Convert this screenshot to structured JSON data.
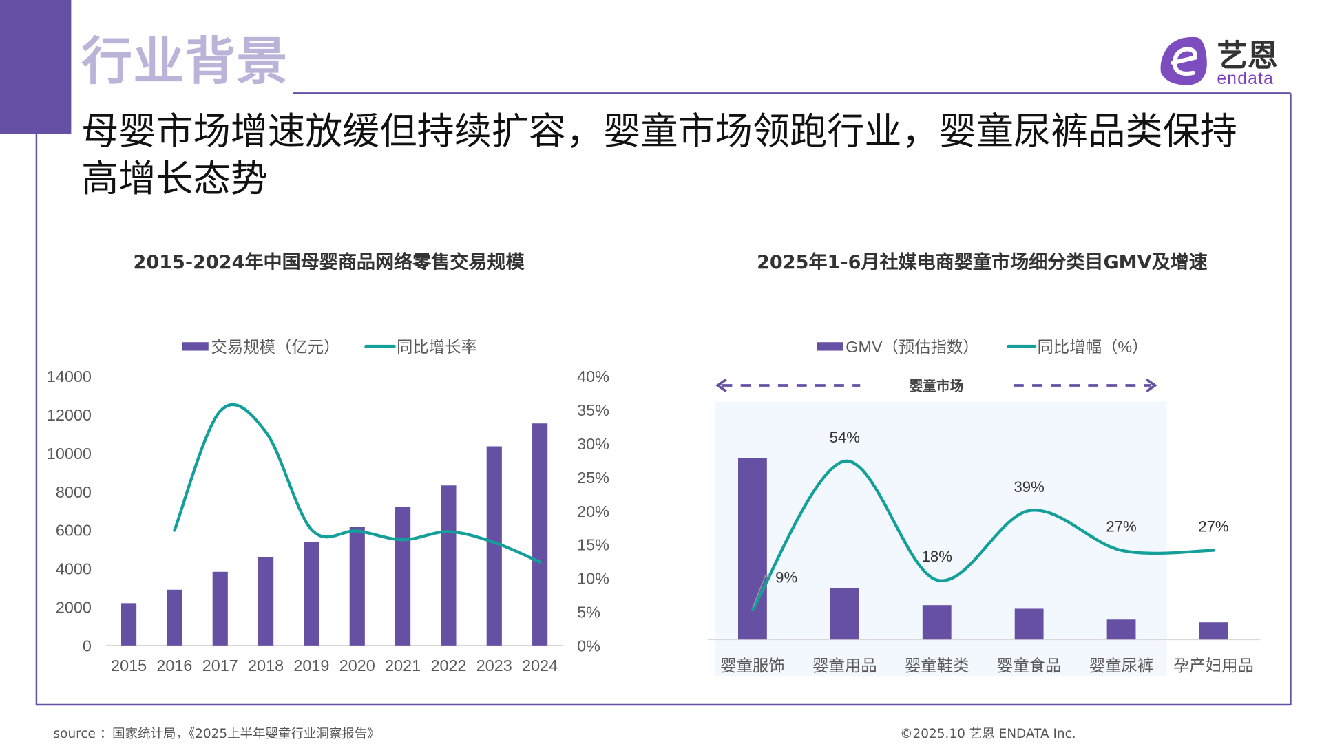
{
  "header": {
    "section_title": "行业背景",
    "headline": "母婴市场增速放缓但持续扩容，婴童市场领跑行业，婴童尿裤品类保持高增长态势",
    "logo_text": "艺恩",
    "logo_subtext": "endata"
  },
  "colors": {
    "brand_purple": "#6650a4",
    "section_title": "#bcb3d9",
    "bar": "#6650a4",
    "line": "#149f9a",
    "market_band": "#f3f8fe"
  },
  "chart_data": [
    {
      "type": "bar",
      "title": "2015-2024年中国母婴商品网络零售交易规模",
      "categories": [
        "2015",
        "2016",
        "2017",
        "2018",
        "2019",
        "2020",
        "2021",
        "2022",
        "2023",
        "2024"
      ],
      "series": [
        {
          "name": "交易规模（亿元）",
          "type": "bar",
          "axis": "left",
          "values": [
            2200,
            2900,
            3830,
            4580,
            5370,
            6160,
            7220,
            8320,
            10350,
            11540
          ]
        },
        {
          "name": "同比增长率",
          "type": "line",
          "axis": "right",
          "values": [
            null,
            17.1,
            34.8,
            31.7,
            17.2,
            17.0,
            15.7,
            16.9,
            15.3,
            12.4
          ]
        }
      ],
      "ylim_left": [
        0,
        14000
      ],
      "yticks_left": [
        "0",
        "2000",
        "4000",
        "6000",
        "8000",
        "10000",
        "12000",
        "14000"
      ],
      "ylim_right": [
        0,
        40
      ],
      "yticks_right": [
        "0%",
        "5%",
        "10%",
        "15%",
        "20%",
        "25%",
        "30%",
        "35%",
        "40%"
      ],
      "legend_position": "top",
      "grid": false
    },
    {
      "type": "bar",
      "title": "2025年1-6月社媒电商婴童市场细分类目GMV及增速",
      "categories": [
        "婴童服饰",
        "婴童用品",
        "婴童鞋类",
        "婴童食品",
        "婴童尿裤",
        "孕产妇用品"
      ],
      "series": [
        {
          "name": "GMV（预估指数）",
          "type": "bar",
          "values": [
            100,
            28.5,
            19,
            17,
            11,
            9.5
          ]
        },
        {
          "name": "同比增幅（%）",
          "type": "line",
          "values": [
            9,
            54,
            18,
            39,
            27,
            27
          ],
          "labels": [
            "9%",
            "54%",
            "18%",
            "39%",
            "27%",
            "27%"
          ]
        }
      ],
      "annotation": "婴童市场",
      "legend_position": "top",
      "grid": false
    }
  ],
  "footer": {
    "source": "source ：国家统计局，《2025上半年婴童行业洞察报告》",
    "copyright": "©2025.10  艺恩 ENDATA Inc."
  }
}
